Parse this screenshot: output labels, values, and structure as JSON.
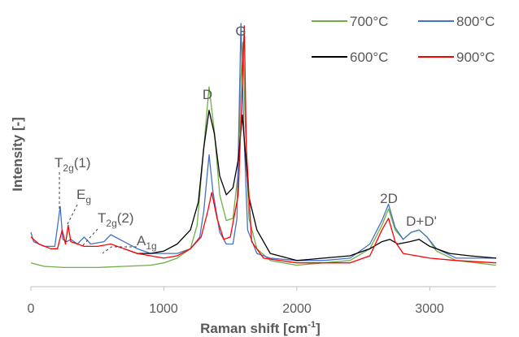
{
  "chart_data": {
    "type": "line",
    "xlabel": "Raman shift [cm",
    "xlabel_sup": "-1",
    "xlabel_close": "]",
    "ylabel": "Intensity [-]",
    "xlim": [
      0,
      3500
    ],
    "ylim": [
      0,
      1
    ],
    "x_ticks": [
      "0",
      "1000",
      "2000",
      "3000"
    ],
    "grid": false,
    "legend_position": "top-right",
    "peak_labels": {
      "D": "D",
      "G": "G",
      "2D": "2D",
      "DD": "D+D'",
      "t2g1_base": "T",
      "t2g1_sub": "2g",
      "t2g1_tail": "(1)",
      "eg_base": "E",
      "eg_sub": "g",
      "t2g2_base": "T",
      "t2g2_sub": "2g",
      "t2g2_tail": "(2)",
      "a1g_base": "A",
      "a1g_sub": "1g"
    },
    "series": [
      {
        "name": "700°C",
        "color": "#70ad47",
        "points": [
          [
            0,
            0.06
          ],
          [
            100,
            0.045
          ],
          [
            250,
            0.04
          ],
          [
            500,
            0.04
          ],
          [
            700,
            0.045
          ],
          [
            900,
            0.05
          ],
          [
            1000,
            0.06
          ],
          [
            1100,
            0.08
          ],
          [
            1200,
            0.12
          ],
          [
            1250,
            0.22
          ],
          [
            1300,
            0.55
          ],
          [
            1340,
            0.81
          ],
          [
            1380,
            0.62
          ],
          [
            1420,
            0.35
          ],
          [
            1470,
            0.24
          ],
          [
            1520,
            0.25
          ],
          [
            1560,
            0.45
          ],
          [
            1580,
            0.85
          ],
          [
            1595,
            1.0
          ],
          [
            1610,
            0.7
          ],
          [
            1640,
            0.25
          ],
          [
            1700,
            0.12
          ],
          [
            1800,
            0.07
          ],
          [
            2000,
            0.05
          ],
          [
            2200,
            0.06
          ],
          [
            2400,
            0.07
          ],
          [
            2550,
            0.12
          ],
          [
            2640,
            0.22
          ],
          [
            2690,
            0.29
          ],
          [
            2740,
            0.2
          ],
          [
            2800,
            0.16
          ],
          [
            2860,
            0.19
          ],
          [
            2920,
            0.2
          ],
          [
            2980,
            0.17
          ],
          [
            3050,
            0.11
          ],
          [
            3200,
            0.07
          ],
          [
            3500,
            0.05
          ]
        ]
      },
      {
        "name": "800°C",
        "color": "#4472c4",
        "points": [
          [
            0,
            0.19
          ],
          [
            20,
            0.15
          ],
          [
            100,
            0.13
          ],
          [
            180,
            0.13
          ],
          [
            220,
            0.3
          ],
          [
            240,
            0.16
          ],
          [
            270,
            0.15
          ],
          [
            300,
            0.16
          ],
          [
            350,
            0.14
          ],
          [
            400,
            0.17
          ],
          [
            450,
            0.14
          ],
          [
            550,
            0.15
          ],
          [
            600,
            0.18
          ],
          [
            700,
            0.15
          ],
          [
            800,
            0.12
          ],
          [
            900,
            0.1
          ],
          [
            1000,
            0.1
          ],
          [
            1100,
            0.1
          ],
          [
            1200,
            0.12
          ],
          [
            1270,
            0.17
          ],
          [
            1300,
            0.28
          ],
          [
            1340,
            0.52
          ],
          [
            1370,
            0.36
          ],
          [
            1420,
            0.19
          ],
          [
            1470,
            0.14
          ],
          [
            1520,
            0.14
          ],
          [
            1550,
            0.25
          ],
          [
            1580,
            1.08
          ],
          [
            1600,
            0.65
          ],
          [
            1630,
            0.2
          ],
          [
            1700,
            0.1
          ],
          [
            1800,
            0.08
          ],
          [
            2000,
            0.07
          ],
          [
            2200,
            0.07
          ],
          [
            2400,
            0.08
          ],
          [
            2550,
            0.14
          ],
          [
            2640,
            0.24
          ],
          [
            2690,
            0.31
          ],
          [
            2740,
            0.21
          ],
          [
            2800,
            0.16
          ],
          [
            2860,
            0.19
          ],
          [
            2920,
            0.2
          ],
          [
            2980,
            0.17
          ],
          [
            3050,
            0.12
          ],
          [
            3200,
            0.08
          ],
          [
            3500,
            0.08
          ]
        ]
      },
      {
        "name": "600°C",
        "color": "#000000",
        "points": [
          [
            700,
            0.12
          ],
          [
            800,
            0.1
          ],
          [
            900,
            0.1
          ],
          [
            1000,
            0.11
          ],
          [
            1100,
            0.14
          ],
          [
            1200,
            0.2
          ],
          [
            1260,
            0.32
          ],
          [
            1300,
            0.55
          ],
          [
            1340,
            0.71
          ],
          [
            1380,
            0.61
          ],
          [
            1420,
            0.43
          ],
          [
            1470,
            0.35
          ],
          [
            1520,
            0.38
          ],
          [
            1560,
            0.5
          ],
          [
            1590,
            0.69
          ],
          [
            1610,
            0.55
          ],
          [
            1640,
            0.34
          ],
          [
            1700,
            0.2
          ],
          [
            1800,
            0.1
          ],
          [
            2000,
            0.07
          ],
          [
            2200,
            0.08
          ],
          [
            2400,
            0.09
          ],
          [
            2550,
            0.12
          ],
          [
            2640,
            0.15
          ],
          [
            2700,
            0.16
          ],
          [
            2760,
            0.14
          ],
          [
            2850,
            0.15
          ],
          [
            2920,
            0.16
          ],
          [
            3000,
            0.13
          ],
          [
            3150,
            0.1
          ],
          [
            3300,
            0.09
          ],
          [
            3500,
            0.08
          ]
        ]
      },
      {
        "name": "900°C",
        "color": "#ff0000",
        "points": [
          [
            0,
            0.17
          ],
          [
            60,
            0.14
          ],
          [
            150,
            0.12
          ],
          [
            200,
            0.12
          ],
          [
            235,
            0.2
          ],
          [
            260,
            0.14
          ],
          [
            280,
            0.22
          ],
          [
            300,
            0.15
          ],
          [
            400,
            0.13
          ],
          [
            500,
            0.13
          ],
          [
            600,
            0.14
          ],
          [
            700,
            0.12
          ],
          [
            800,
            0.1
          ],
          [
            900,
            0.09
          ],
          [
            1000,
            0.08
          ],
          [
            1100,
            0.09
          ],
          [
            1200,
            0.12
          ],
          [
            1280,
            0.17
          ],
          [
            1330,
            0.28
          ],
          [
            1360,
            0.36
          ],
          [
            1400,
            0.25
          ],
          [
            1450,
            0.16
          ],
          [
            1500,
            0.17
          ],
          [
            1560,
            0.35
          ],
          [
            1590,
            0.82
          ],
          [
            1605,
            1.07
          ],
          [
            1620,
            0.55
          ],
          [
            1660,
            0.15
          ],
          [
            1750,
            0.08
          ],
          [
            2000,
            0.06
          ],
          [
            2200,
            0.06
          ],
          [
            2400,
            0.06
          ],
          [
            2550,
            0.09
          ],
          [
            2640,
            0.2
          ],
          [
            2690,
            0.25
          ],
          [
            2740,
            0.15
          ],
          [
            2800,
            0.1
          ],
          [
            3000,
            0.08
          ],
          [
            3200,
            0.07
          ],
          [
            3500,
            0.06
          ]
        ]
      }
    ]
  }
}
